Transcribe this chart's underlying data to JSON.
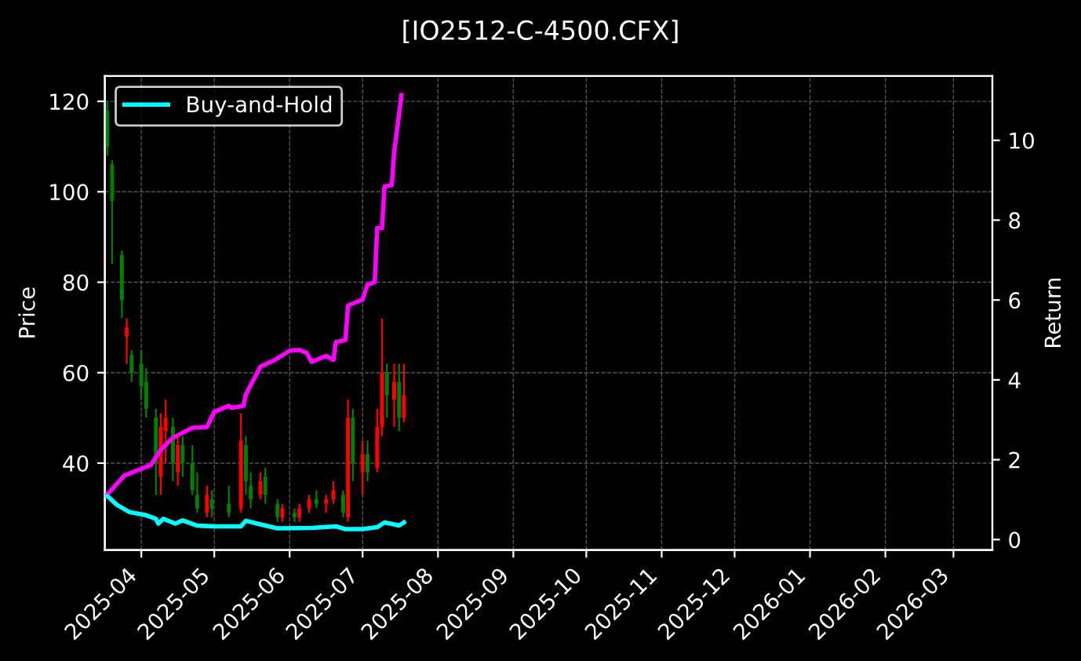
{
  "chart_data": {
    "type": "candlestick",
    "title": "[IO2512-C-4500.CFX]",
    "ylabel": "Price",
    "y2label": "Return",
    "x": [
      "2025-03-18",
      "2025-03-20",
      "2025-03-24",
      "2025-03-26",
      "2025-03-28",
      "2025-04-01",
      "2025-04-03",
      "2025-04-07",
      "2025-04-09",
      "2025-04-11",
      "2025-04-14",
      "2025-04-16",
      "2025-04-18",
      "2025-04-22",
      "2025-04-24",
      "2025-04-28",
      "2025-04-30",
      "2025-05-07",
      "2025-05-12",
      "2025-05-14",
      "2025-05-16",
      "2025-05-20",
      "2025-05-22",
      "2025-05-27",
      "2025-05-29",
      "2025-06-03",
      "2025-06-05",
      "2025-06-09",
      "2025-06-12",
      "2025-06-16",
      "2025-06-19",
      "2025-06-23",
      "2025-06-25",
      "2025-06-27",
      "2025-07-01",
      "2025-07-03",
      "2025-07-07",
      "2025-07-09",
      "2025-07-11",
      "2025-07-14",
      "2025-07-16",
      "2025-07-18"
    ],
    "ohlc": [
      [
        118,
        120,
        108,
        110
      ],
      [
        106,
        107,
        84,
        98
      ],
      [
        86,
        87,
        72,
        76
      ],
      [
        68,
        72,
        62,
        70
      ],
      [
        64,
        65,
        58,
        60
      ],
      [
        62,
        65,
        54,
        57
      ],
      [
        58,
        61,
        50,
        52
      ],
      [
        50,
        52,
        33,
        40
      ],
      [
        37,
        51,
        33,
        48
      ],
      [
        47,
        54,
        40,
        50
      ],
      [
        48,
        50,
        36,
        40
      ],
      [
        38,
        46,
        35,
        44
      ],
      [
        44,
        46,
        37,
        40
      ],
      [
        40,
        44,
        33,
        34
      ],
      [
        33,
        38,
        29,
        30
      ],
      [
        29,
        35,
        28,
        33
      ],
      [
        32,
        34,
        28,
        30
      ],
      [
        31,
        35,
        28,
        29
      ],
      [
        30,
        51,
        29,
        45
      ],
      [
        44,
        46,
        33,
        36
      ],
      [
        35,
        38,
        30,
        32
      ],
      [
        33,
        38,
        32,
        36
      ],
      [
        37,
        39,
        31,
        33
      ],
      [
        31,
        32,
        27,
        28
      ],
      [
        28,
        31,
        27,
        30
      ],
      [
        29,
        30,
        27,
        28
      ],
      [
        28,
        31,
        27,
        30
      ],
      [
        30,
        33,
        29,
        32
      ],
      [
        32,
        34,
        30,
        31
      ],
      [
        31,
        33,
        29,
        32
      ],
      [
        32,
        36,
        31,
        34
      ],
      [
        33,
        34,
        28,
        29
      ],
      [
        28,
        54,
        27,
        50
      ],
      [
        50,
        52,
        36,
        40
      ],
      [
        38,
        45,
        33,
        42
      ],
      [
        42,
        45,
        36,
        38
      ],
      [
        39,
        52,
        38,
        48
      ],
      [
        48,
        72,
        46,
        60
      ],
      [
        60,
        62,
        50,
        55
      ],
      [
        54,
        62,
        48,
        58
      ],
      [
        58,
        62,
        47,
        50
      ],
      [
        50,
        62,
        49,
        55
      ]
    ],
    "colors": [
      "#008000",
      "#008000",
      "#008000",
      "#ff0000",
      "#008000",
      "#008000",
      "#008000",
      "#008000",
      "#ff0000",
      "#ff0000",
      "#008000",
      "#ff0000",
      "#008000",
      "#008000",
      "#008000",
      "#ff0000",
      "#008000",
      "#008000",
      "#ff0000",
      "#008000",
      "#008000",
      "#ff0000",
      "#008000",
      "#008000",
      "#ff0000",
      "#008000",
      "#ff0000",
      "#ff0000",
      "#008000",
      "#ff0000",
      "#ff0000",
      "#008000",
      "#ff0000",
      "#008000",
      "#ff0000",
      "#008000",
      "#ff0000",
      "#ff0000",
      "#008000",
      "#ff0000",
      "#008000",
      "#ff0000"
    ],
    "series": [
      {
        "type": "line",
        "axis": "y2",
        "color": "#ff00ff",
        "x": [
          "2025-03-18",
          "2025-03-25",
          "2025-04-05",
          "2025-04-09",
          "2025-04-14",
          "2025-04-22",
          "2025-04-28",
          "2025-05-01",
          "2025-05-07",
          "2025-05-08",
          "2025-05-13",
          "2025-05-14",
          "2025-05-20",
          "2025-05-26",
          "2025-06-01",
          "2025-06-05",
          "2025-06-08",
          "2025-06-10",
          "2025-06-16",
          "2025-06-19",
          "2025-06-20",
          "2025-06-24",
          "2025-06-25",
          "2025-07-01",
          "2025-07-03",
          "2025-07-06",
          "2025-07-07",
          "2025-07-09",
          "2025-07-10",
          "2025-07-13",
          "2025-07-14",
          "2025-07-17"
        ],
        "values": [
          1.13,
          1.6,
          1.87,
          2.25,
          2.55,
          2.8,
          2.82,
          3.2,
          3.35,
          3.3,
          3.35,
          3.64,
          4.33,
          4.5,
          4.73,
          4.75,
          4.68,
          4.45,
          4.6,
          4.5,
          4.94,
          5.0,
          5.86,
          6.01,
          6.38,
          6.45,
          7.8,
          7.8,
          8.84,
          8.88,
          9.7,
          11.13
        ]
      },
      {
        "type": "line",
        "axis": "y2",
        "name": "Buy-and-Hold",
        "color": "#00ffff",
        "x": [
          "2025-03-18",
          "2025-03-22",
          "2025-03-27",
          "2025-04-03",
          "2025-04-07",
          "2025-04-08",
          "2025-04-10",
          "2025-04-15",
          "2025-04-18",
          "2025-04-24",
          "2025-05-01",
          "2025-05-12",
          "2025-05-14",
          "2025-05-20",
          "2025-05-27",
          "2025-06-10",
          "2025-06-20",
          "2025-06-24",
          "2025-07-01",
          "2025-07-07",
          "2025-07-10",
          "2025-07-14",
          "2025-07-16",
          "2025-07-18"
        ],
        "values": [
          1.09,
          0.87,
          0.69,
          0.61,
          0.52,
          0.4,
          0.52,
          0.4,
          0.48,
          0.35,
          0.33,
          0.33,
          0.47,
          0.38,
          0.28,
          0.29,
          0.33,
          0.26,
          0.26,
          0.31,
          0.43,
          0.38,
          0.35,
          0.43
        ]
      }
    ],
    "xlim": [
      "2025-03-17",
      "2026-03-17"
    ],
    "xticks": [
      "2025-04",
      "2025-05",
      "2025-06",
      "2025-07",
      "2025-08",
      "2025-09",
      "2025-10",
      "2025-11",
      "2025-12",
      "2026-01",
      "2026-02",
      "2026-03"
    ],
    "ylim": [
      20.8,
      125.6
    ],
    "yticks": [
      40,
      60,
      80,
      100,
      120
    ],
    "y2lim": [
      -0.26,
      11.61
    ],
    "y2ticks": [
      0,
      2,
      4,
      6,
      8,
      10
    ],
    "grid": true,
    "legend": "top left"
  }
}
